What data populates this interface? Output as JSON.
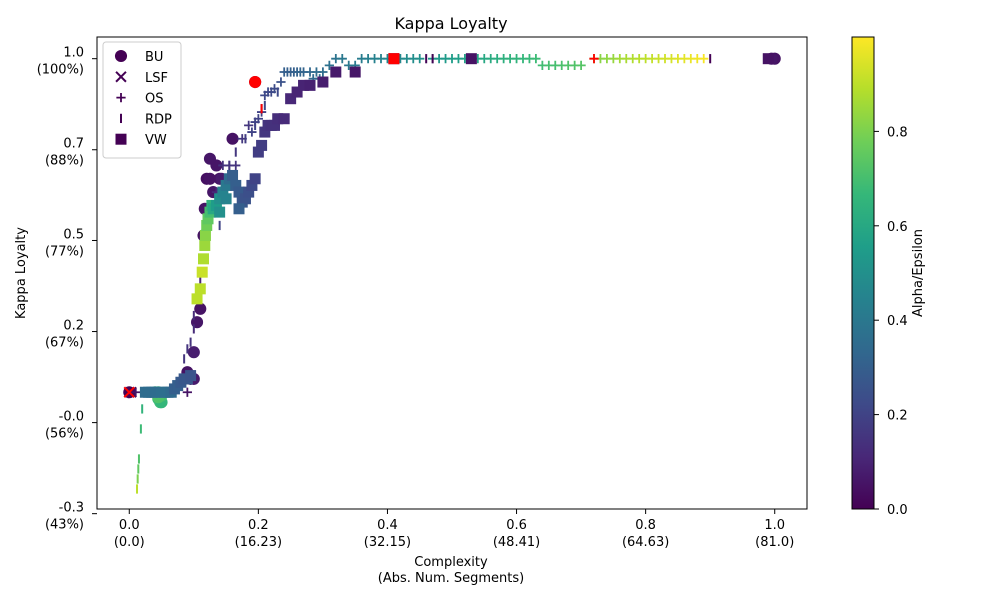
{
  "chart_data": {
    "type": "scatter",
    "title": "Kappa Loyalty",
    "xlabel_line1": "Complexity",
    "xlabel_line2": "(Abs. Num. Segments)",
    "ylabel": "Kappa Loyalty",
    "colorbar_label": "Alpha/Epsilon",
    "xlim": [
      -0.05,
      1.05
    ],
    "ylim": [
      -0.35,
      1.065
    ],
    "x_ticks": [
      {
        "value": 0.0,
        "line1": "0.0",
        "line2": "(0.0)"
      },
      {
        "value": 0.2,
        "line1": "0.2",
        "line2": "(16.23)"
      },
      {
        "value": 0.4,
        "line1": "0.4",
        "line2": "(32.15)"
      },
      {
        "value": 0.6,
        "line1": "0.6",
        "line2": "(48.41)"
      },
      {
        "value": 0.8,
        "line1": "0.8",
        "line2": "(64.63)"
      },
      {
        "value": 1.0,
        "line1": "1.0",
        "line2": "(81.0)"
      }
    ],
    "y_ticks": [
      {
        "value": 1.0,
        "line1": "1.0",
        "line2": "(100%)"
      },
      {
        "value": 0.727,
        "line1": "0.7",
        "line2": "(88%)"
      },
      {
        "value": 0.455,
        "line1": "0.5",
        "line2": "(77%)"
      },
      {
        "value": 0.182,
        "line1": "0.2",
        "line2": "(67%)"
      },
      {
        "value": -0.091,
        "line1": "-0.0",
        "line2": "(56%)"
      },
      {
        "value": -0.364,
        "line1": "-0.3",
        "line2": "(43%)"
      }
    ],
    "colorbar_ticks": [
      "0.0",
      "0.2",
      "0.4",
      "0.6",
      "0.8"
    ],
    "colorbar_range": [
      0,
      1
    ],
    "legend": [
      {
        "label": "BU",
        "marker": "circle"
      },
      {
        "label": "LSF",
        "marker": "x"
      },
      {
        "label": "OS",
        "marker": "plus"
      },
      {
        "label": "RDP",
        "marker": "vline"
      },
      {
        "label": "VW",
        "marker": "square"
      }
    ],
    "legend_placement": "upper-left",
    "highlight_color": "#ff0000",
    "series": [
      {
        "name": "BU",
        "marker": "circle",
        "points": [
          [
            0.0,
            0.0,
            0.0
          ],
          [
            0.09,
            0.06,
            0.05
          ],
          [
            0.095,
            0.04,
            0.06
          ],
          [
            0.1,
            0.04,
            0.07
          ],
          [
            0.1,
            0.12,
            0.08
          ],
          [
            0.105,
            0.21,
            0.06
          ],
          [
            0.11,
            0.25,
            0.05
          ],
          [
            0.115,
            0.47,
            0.05
          ],
          [
            0.117,
            0.55,
            0.05
          ],
          [
            0.12,
            0.64,
            0.04
          ],
          [
            0.125,
            0.64,
            0.05
          ],
          [
            0.13,
            0.6,
            0.06
          ],
          [
            0.135,
            0.68,
            0.06
          ],
          [
            0.14,
            0.64,
            0.05
          ],
          [
            0.143,
            0.64,
            0.07
          ],
          [
            0.125,
            0.7,
            0.06
          ],
          [
            0.16,
            0.76,
            0.05
          ],
          [
            0.195,
            0.93,
            0.02
          ],
          [
            1.0,
            1.0,
            0.05
          ],
          [
            0.995,
            1.0,
            0.06
          ],
          [
            0.04,
            0.0,
            0.65
          ],
          [
            0.045,
            0.0,
            0.66
          ],
          [
            0.045,
            -0.02,
            0.67
          ],
          [
            0.048,
            -0.03,
            0.68
          ],
          [
            0.05,
            -0.03,
            0.66
          ],
          [
            0.05,
            -0.01,
            0.7
          ],
          [
            0.045,
            -0.015,
            0.72
          ]
        ]
      },
      {
        "name": "LSF",
        "marker": "x",
        "points": [
          [
            0.0,
            0.0,
            0.0
          ],
          [
            0.003,
            0.0,
            0.02
          ]
        ]
      },
      {
        "name": "OS",
        "marker": "plus",
        "points": [
          [
            0.01,
            0.0,
            0.05
          ],
          [
            0.09,
            0.0,
            0.05
          ],
          [
            0.13,
            0.54,
            0.1
          ],
          [
            0.135,
            0.6,
            0.12
          ],
          [
            0.145,
            0.68,
            0.14
          ],
          [
            0.155,
            0.68,
            0.15
          ],
          [
            0.165,
            0.68,
            0.15
          ],
          [
            0.175,
            0.76,
            0.16
          ],
          [
            0.185,
            0.8,
            0.16
          ],
          [
            0.19,
            0.78,
            0.2
          ],
          [
            0.195,
            0.81,
            0.2
          ],
          [
            0.2,
            0.82,
            0.2
          ],
          [
            0.205,
            0.84,
            0.2
          ],
          [
            0.21,
            0.89,
            0.22
          ],
          [
            0.215,
            0.9,
            0.22
          ],
          [
            0.22,
            0.9,
            0.22
          ],
          [
            0.225,
            0.91,
            0.23
          ],
          [
            0.235,
            0.93,
            0.25
          ],
          [
            0.24,
            0.96,
            0.3
          ],
          [
            0.245,
            0.96,
            0.3
          ],
          [
            0.25,
            0.96,
            0.3
          ],
          [
            0.255,
            0.96,
            0.3
          ],
          [
            0.26,
            0.96,
            0.31
          ],
          [
            0.265,
            0.96,
            0.32
          ],
          [
            0.27,
            0.96,
            0.32
          ],
          [
            0.28,
            0.96,
            0.33
          ],
          [
            0.285,
            0.94,
            0.34
          ],
          [
            0.29,
            0.96,
            0.35
          ],
          [
            0.295,
            0.94,
            0.35
          ],
          [
            0.3,
            0.96,
            0.35
          ],
          [
            0.31,
            0.98,
            0.37
          ],
          [
            0.32,
            1.0,
            0.38
          ],
          [
            0.33,
            1.0,
            0.4
          ],
          [
            0.34,
            0.98,
            0.4
          ],
          [
            0.35,
            0.98,
            0.4
          ],
          [
            0.36,
            1.0,
            0.42
          ],
          [
            0.37,
            1.0,
            0.43
          ],
          [
            0.38,
            1.0,
            0.44
          ],
          [
            0.39,
            1.0,
            0.45
          ],
          [
            0.4,
            1.0,
            0.46
          ],
          [
            0.42,
            1.0,
            0.47
          ],
          [
            0.43,
            1.0,
            0.48
          ],
          [
            0.44,
            1.0,
            0.49
          ],
          [
            0.45,
            1.0,
            0.5
          ],
          [
            0.47,
            1.0,
            0.52
          ],
          [
            0.48,
            1.0,
            0.53
          ],
          [
            0.49,
            1.0,
            0.54
          ],
          [
            0.5,
            1.0,
            0.55
          ],
          [
            0.51,
            1.0,
            0.56
          ],
          [
            0.52,
            1.0,
            0.57
          ],
          [
            0.54,
            1.0,
            0.59
          ],
          [
            0.55,
            1.0,
            0.6
          ],
          [
            0.56,
            1.0,
            0.61
          ],
          [
            0.57,
            1.0,
            0.62
          ],
          [
            0.58,
            1.0,
            0.63
          ],
          [
            0.59,
            1.0,
            0.64
          ],
          [
            0.6,
            1.0,
            0.65
          ],
          [
            0.61,
            1.0,
            0.66
          ],
          [
            0.62,
            1.0,
            0.67
          ],
          [
            0.63,
            1.0,
            0.68
          ],
          [
            0.64,
            0.98,
            0.69
          ],
          [
            0.65,
            0.98,
            0.7
          ],
          [
            0.66,
            0.98,
            0.7
          ],
          [
            0.67,
            0.98,
            0.71
          ],
          [
            0.68,
            0.98,
            0.72
          ],
          [
            0.69,
            0.98,
            0.72
          ],
          [
            0.7,
            0.98,
            0.73
          ],
          [
            0.72,
            1.0,
            0.8
          ],
          [
            0.73,
            1.0,
            0.82
          ],
          [
            0.74,
            1.0,
            0.83
          ],
          [
            0.75,
            1.0,
            0.84
          ],
          [
            0.76,
            1.0,
            0.86
          ],
          [
            0.77,
            1.0,
            0.87
          ],
          [
            0.78,
            1.0,
            0.88
          ],
          [
            0.79,
            1.0,
            0.89
          ],
          [
            0.8,
            1.0,
            0.9
          ],
          [
            0.81,
            1.0,
            0.91
          ],
          [
            0.82,
            1.0,
            0.92
          ],
          [
            0.83,
            1.0,
            0.93
          ],
          [
            0.84,
            1.0,
            0.94
          ],
          [
            0.85,
            1.0,
            0.95
          ],
          [
            0.86,
            1.0,
            0.96
          ],
          [
            0.87,
            1.0,
            0.97
          ],
          [
            0.88,
            1.0,
            0.98
          ],
          [
            0.89,
            1.0,
            0.99
          ]
        ]
      },
      {
        "name": "RDP",
        "marker": "vline",
        "points": [
          [
            0.012,
            -0.29,
            0.9
          ],
          [
            0.013,
            -0.26,
            0.8
          ],
          [
            0.014,
            -0.23,
            0.75
          ],
          [
            0.015,
            -0.2,
            0.72
          ],
          [
            0.018,
            -0.11,
            0.68
          ],
          [
            0.02,
            -0.05,
            0.65
          ],
          [
            0.04,
            0.0,
            0.8
          ],
          [
            0.085,
            0.1,
            0.15
          ],
          [
            0.09,
            0.13,
            0.15
          ],
          [
            0.095,
            0.15,
            0.15
          ],
          [
            0.1,
            0.19,
            0.12
          ],
          [
            0.1,
            0.23,
            0.12
          ],
          [
            0.105,
            0.29,
            0.1
          ],
          [
            0.11,
            0.34,
            0.1
          ],
          [
            0.115,
            0.45,
            0.1
          ],
          [
            0.12,
            0.49,
            0.12
          ],
          [
            0.125,
            0.53,
            0.12
          ],
          [
            0.14,
            0.5,
            0.2
          ],
          [
            0.155,
            0.68,
            0.15
          ],
          [
            0.165,
            0.72,
            0.16
          ],
          [
            0.18,
            0.76,
            0.18
          ],
          [
            0.195,
            0.8,
            0.2
          ],
          [
            0.205,
            0.85,
            0.02
          ],
          [
            0.21,
            0.86,
            0.22
          ],
          [
            0.23,
            0.9,
            0.22
          ],
          [
            0.32,
            0.96,
            0.38
          ],
          [
            0.46,
            1.0,
            0.01
          ],
          [
            0.47,
            1.0,
            0.0
          ],
          [
            0.9,
            1.0,
            0.0
          ]
        ]
      },
      {
        "name": "VW",
        "marker": "square",
        "points": [
          [
            0.025,
            0.0,
            0.35
          ],
          [
            0.03,
            0.0,
            0.35
          ],
          [
            0.035,
            0.0,
            0.35
          ],
          [
            0.04,
            0.0,
            0.35
          ],
          [
            0.05,
            0.0,
            0.36
          ],
          [
            0.055,
            0.0,
            0.36
          ],
          [
            0.06,
            0.0,
            0.36
          ],
          [
            0.065,
            0.0,
            0.34
          ],
          [
            0.07,
            0.01,
            0.3
          ],
          [
            0.075,
            0.02,
            0.3
          ],
          [
            0.08,
            0.03,
            0.28
          ],
          [
            0.085,
            0.04,
            0.27
          ],
          [
            0.09,
            0.04,
            0.27
          ],
          [
            0.095,
            0.05,
            0.26
          ],
          [
            0.105,
            0.28,
            0.9
          ],
          [
            0.11,
            0.31,
            0.9
          ],
          [
            0.113,
            0.36,
            0.92
          ],
          [
            0.115,
            0.4,
            0.88
          ],
          [
            0.117,
            0.44,
            0.85
          ],
          [
            0.118,
            0.47,
            0.82
          ],
          [
            0.12,
            0.5,
            0.78
          ],
          [
            0.122,
            0.52,
            0.75
          ],
          [
            0.125,
            0.54,
            0.7
          ],
          [
            0.128,
            0.56,
            0.65
          ],
          [
            0.13,
            0.55,
            0.6
          ],
          [
            0.135,
            0.56,
            0.55
          ],
          [
            0.14,
            0.58,
            0.5
          ],
          [
            0.145,
            0.6,
            0.45
          ],
          [
            0.15,
            0.62,
            0.4
          ],
          [
            0.155,
            0.64,
            0.35
          ],
          [
            0.16,
            0.65,
            0.3
          ],
          [
            0.165,
            0.62,
            0.3
          ],
          [
            0.17,
            0.6,
            0.28
          ],
          [
            0.175,
            0.57,
            0.27
          ],
          [
            0.18,
            0.58,
            0.25
          ],
          [
            0.185,
            0.6,
            0.24
          ],
          [
            0.19,
            0.62,
            0.22
          ],
          [
            0.195,
            0.64,
            0.2
          ],
          [
            0.2,
            0.72,
            0.18
          ],
          [
            0.205,
            0.74,
            0.18
          ],
          [
            0.21,
            0.78,
            0.16
          ],
          [
            0.215,
            0.8,
            0.15
          ],
          [
            0.22,
            0.8,
            0.14
          ],
          [
            0.225,
            0.8,
            0.14
          ],
          [
            0.23,
            0.82,
            0.13
          ],
          [
            0.24,
            0.82,
            0.12
          ],
          [
            0.25,
            0.88,
            0.11
          ],
          [
            0.26,
            0.9,
            0.1
          ],
          [
            0.27,
            0.92,
            0.1
          ],
          [
            0.28,
            0.92,
            0.09
          ],
          [
            0.3,
            0.93,
            0.08
          ],
          [
            0.32,
            0.96,
            0.07
          ],
          [
            0.35,
            0.96,
            0.06
          ],
          [
            0.41,
            1.0,
            0.02
          ],
          [
            0.53,
            1.0,
            0.05
          ],
          [
            0.99,
            1.0,
            0.05
          ],
          [
            0.17,
            0.55,
            0.3
          ],
          [
            0.15,
            0.58,
            0.45
          ],
          [
            0.14,
            0.54,
            0.5
          ]
        ]
      }
    ],
    "highlights": [
      {
        "x": 0.0,
        "y": 0.0,
        "marker": "x"
      },
      {
        "x": 0.195,
        "y": 0.93,
        "marker": "circle"
      },
      {
        "x": 0.41,
        "y": 1.0,
        "marker": "square"
      },
      {
        "x": 0.72,
        "y": 1.0,
        "marker": "plus"
      },
      {
        "x": 0.205,
        "y": 0.85,
        "marker": "vline"
      }
    ]
  }
}
